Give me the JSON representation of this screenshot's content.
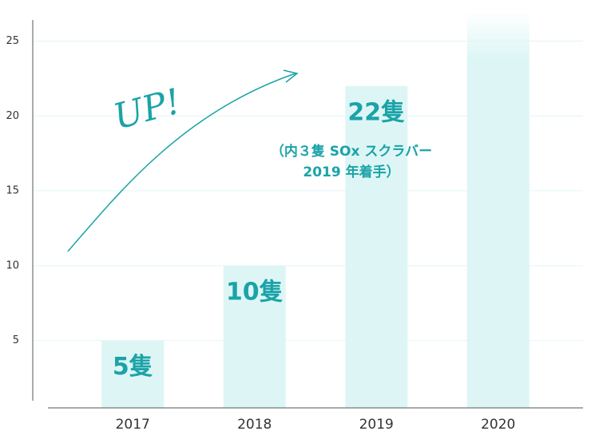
{
  "chart_data": {
    "type": "bar",
    "categories": [
      "2017",
      "2018",
      "2019",
      "2020"
    ],
    "values": [
      5,
      10,
      22,
      27
    ],
    "value_labels": [
      "5隻",
      "10隻",
      "22隻",
      null
    ],
    "color": "#ddf6f5",
    "ylim": [
      0.5,
      27
    ],
    "yticks": [
      5,
      10,
      15,
      20,
      25
    ],
    "grid": true,
    "annotations": [
      "UP!",
      "（内３隻 SOx スクラバー",
      "2019 年着手）"
    ]
  }
}
